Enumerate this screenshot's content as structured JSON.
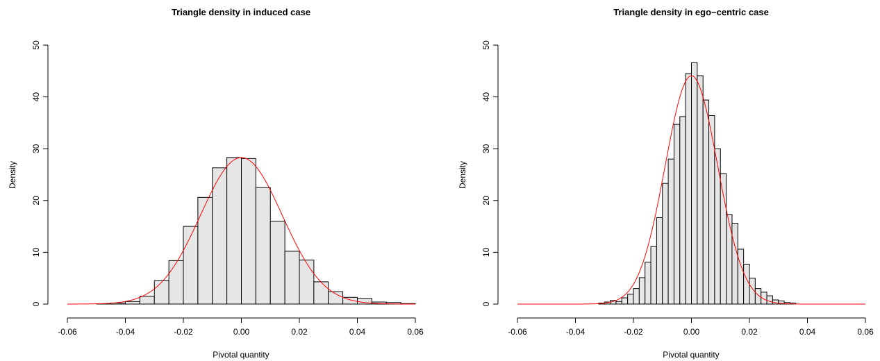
{
  "chart_data": [
    {
      "type": "histogram",
      "title": "Triangle density in induced case",
      "xlabel": "Pivotal quantity",
      "ylabel": "Density",
      "xlim": [
        -0.06,
        0.06
      ],
      "ylim": [
        0,
        50
      ],
      "xticks": [
        -0.06,
        -0.04,
        -0.02,
        0.0,
        0.02,
        0.04,
        0.06
      ],
      "xtick_labels": [
        "-0.06",
        "-0.04",
        "-0.02",
        "0.00",
        "0.02",
        "0.04",
        "0.06"
      ],
      "yticks": [
        0,
        10,
        20,
        30,
        40,
        50
      ],
      "ytick_labels": [
        "0",
        "10",
        "20",
        "30",
        "40",
        "50"
      ],
      "bin_start": -0.05,
      "bin_width": 0.005,
      "bin_values": [
        0.05,
        0.2,
        0.5,
        1.5,
        4.5,
        8.4,
        15.0,
        20.6,
        26.3,
        28.3,
        28.1,
        22.5,
        16.0,
        10.2,
        8.5,
        4.3,
        2.4,
        1.3,
        1.1,
        0.4,
        0.3,
        0.1
      ],
      "curve": {
        "type": "normal",
        "mean": 0.0,
        "sd": 0.0141,
        "x_range": [
          -0.06,
          0.06
        ],
        "color": "#ff0000"
      },
      "bar_fill": "#e6e6e6",
      "bar_stroke": "#000000",
      "grid": false
    },
    {
      "type": "histogram",
      "title": "Triangle density in ego−centric case",
      "xlabel": "Pivotal quantity",
      "ylabel": "Density",
      "xlim": [
        -0.06,
        0.06
      ],
      "ylim": [
        0,
        50
      ],
      "xticks": [
        -0.06,
        -0.04,
        -0.02,
        0.0,
        0.02,
        0.04,
        0.06
      ],
      "xtick_labels": [
        "-0.06",
        "-0.04",
        "-0.02",
        "0.00",
        "0.02",
        "0.04",
        "0.06"
      ],
      "yticks": [
        0,
        10,
        20,
        30,
        40,
        50
      ],
      "ytick_labels": [
        "0",
        "10",
        "20",
        "30",
        "40",
        "50"
      ],
      "bin_start": -0.032,
      "bin_width": 0.002,
      "bin_values": [
        0.2,
        0.4,
        0.7,
        0.5,
        1.2,
        1.9,
        3.0,
        5.1,
        8.1,
        11.1,
        16.7,
        23.3,
        28.0,
        34.7,
        36.2,
        44.5,
        46.6,
        44.1,
        39.4,
        36.4,
        30.0,
        25.2,
        17.3,
        15.6,
        10.6,
        7.7,
        5.0,
        3.0,
        2.3,
        1.6,
        0.8,
        0.6,
        0.3,
        0.2
      ],
      "curve": {
        "type": "normal",
        "mean": 0.0,
        "sd": 0.00905,
        "x_range": [
          -0.06,
          0.06
        ],
        "color": "#ff0000"
      },
      "bar_fill": "#e6e6e6",
      "bar_stroke": "#000000",
      "grid": false
    }
  ]
}
